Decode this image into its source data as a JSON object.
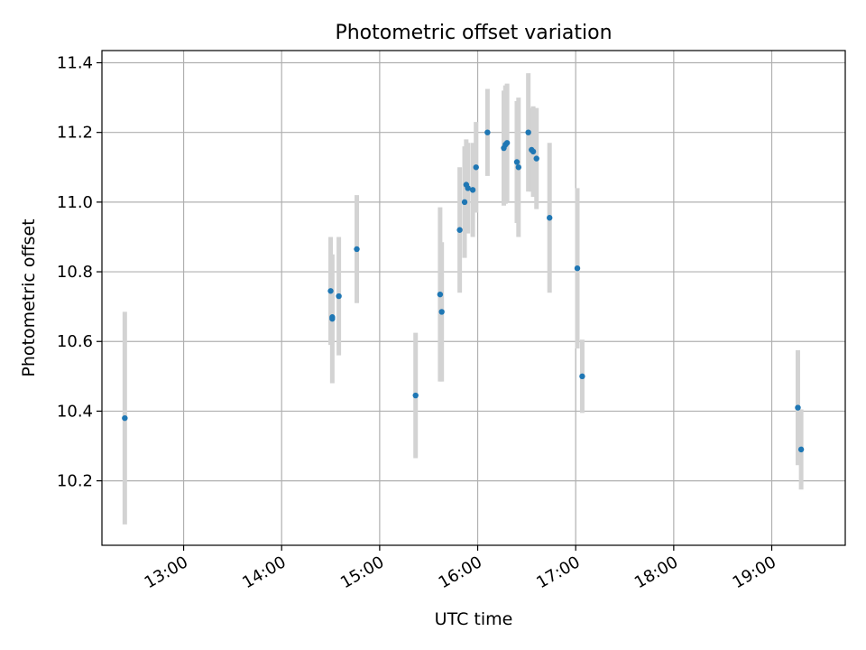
{
  "chart_data": {
    "type": "scatter",
    "title": "Photometric offset variation",
    "xlabel": "UTC time",
    "ylabel": "Photometric offset",
    "xlim": [
      "12:10",
      "19:45"
    ],
    "ylim": [
      10.015,
      11.435
    ],
    "x_ticks": [
      "13:00",
      "14:00",
      "15:00",
      "16:00",
      "17:00",
      "18:00",
      "19:00"
    ],
    "y_ticks": [
      10.2,
      10.4,
      10.6,
      10.8,
      11.0,
      11.2,
      11.4
    ],
    "grid": true,
    "colors": {
      "point": "#1f77b4",
      "errorbar": "#d3d3d3",
      "grid": "#b0b0b0"
    },
    "points": [
      {
        "x": "12:24",
        "y": 10.38,
        "yerr": 0.305
      },
      {
        "x": "14:30",
        "y": 10.745,
        "yerr": 0.155
      },
      {
        "x": "14:31",
        "y": 10.67,
        "yerr": 0.075
      },
      {
        "x": "14:31",
        "y": 10.665,
        "yerr": 0.185
      },
      {
        "x": "14:35",
        "y": 10.73,
        "yerr": 0.17
      },
      {
        "x": "14:46",
        "y": 10.865,
        "yerr": 0.155
      },
      {
        "x": "15:22",
        "y": 10.445,
        "yerr": 0.18
      },
      {
        "x": "15:37",
        "y": 10.735,
        "yerr": 0.25
      },
      {
        "x": "15:38",
        "y": 10.685,
        "yerr": 0.2
      },
      {
        "x": "15:49",
        "y": 10.92,
        "yerr": 0.18
      },
      {
        "x": "15:52",
        "y": 11.0,
        "yerr": 0.16
      },
      {
        "x": "15:53",
        "y": 11.05,
        "yerr": 0.13
      },
      {
        "x": "15:54",
        "y": 11.04,
        "yerr": 0.13
      },
      {
        "x": "15:57",
        "y": 11.035,
        "yerr": 0.135
      },
      {
        "x": "15:59",
        "y": 11.1,
        "yerr": 0.13
      },
      {
        "x": "16:06",
        "y": 11.2,
        "yerr": 0.125
      },
      {
        "x": "16:16",
        "y": 11.155,
        "yerr": 0.165
      },
      {
        "x": "16:17",
        "y": 11.165,
        "yerr": 0.17
      },
      {
        "x": "16:18",
        "y": 11.17,
        "yerr": 0.17
      },
      {
        "x": "16:24",
        "y": 11.115,
        "yerr": 0.175
      },
      {
        "x": "16:25",
        "y": 11.1,
        "yerr": 0.2
      },
      {
        "x": "16:31",
        "y": 11.2,
        "yerr": 0.17
      },
      {
        "x": "16:33",
        "y": 11.15,
        "yerr": 0.12
      },
      {
        "x": "16:34",
        "y": 11.145,
        "yerr": 0.13
      },
      {
        "x": "16:36",
        "y": 11.125,
        "yerr": 0.145
      },
      {
        "x": "16:44",
        "y": 10.955,
        "yerr": 0.215
      },
      {
        "x": "17:01",
        "y": 10.81,
        "yerr": 0.23
      },
      {
        "x": "17:04",
        "y": 10.5,
        "yerr": 0.105
      },
      {
        "x": "19:16",
        "y": 10.41,
        "yerr": 0.165
      },
      {
        "x": "19:18",
        "y": 10.29,
        "yerr": 0.115
      }
    ]
  }
}
